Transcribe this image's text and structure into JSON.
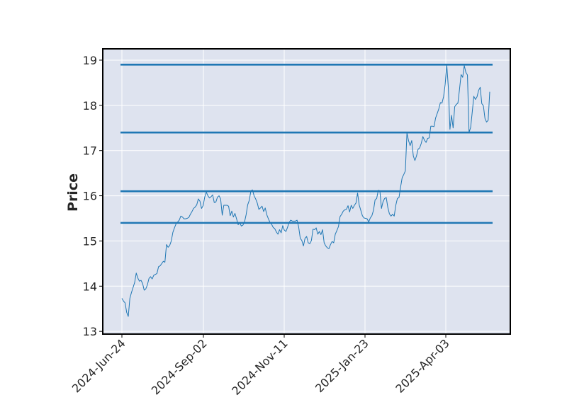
{
  "chart_data": {
    "type": "line",
    "title": "",
    "xlabel": "",
    "ylabel": "Price",
    "ylim": [
      12.94,
      19.25
    ],
    "grid": true,
    "x_tick_labels": [
      "2024-Jun-24",
      "2024-Sep-02",
      "2024-Nov-11",
      "2025-Jan-23",
      "2025-Apr-03"
    ],
    "y_ticks": [
      13,
      14,
      15,
      16,
      17,
      18,
      19
    ],
    "horizontal_levels": [
      15.4,
      16.1,
      17.4,
      18.9
    ],
    "series": [
      {
        "values": [
          13.73,
          13.67,
          13.63,
          13.42,
          13.33,
          13.73,
          13.86,
          13.97,
          14.08,
          14.29,
          14.18,
          14.11,
          14.13,
          14.06,
          13.91,
          13.94,
          14.03,
          14.17,
          14.21,
          14.16,
          14.24,
          14.26,
          14.28,
          14.43,
          14.45,
          14.5,
          14.55,
          14.53,
          14.92,
          14.86,
          14.9,
          15.0,
          15.19,
          15.29,
          15.38,
          15.42,
          15.46,
          15.55,
          15.53,
          15.49,
          15.49,
          15.5,
          15.52,
          15.59,
          15.65,
          15.72,
          15.75,
          15.8,
          15.93,
          15.88,
          15.72,
          15.78,
          15.97,
          16.08,
          16.0,
          15.95,
          15.98,
          16.02,
          15.85,
          15.86,
          15.97,
          16.0,
          15.93,
          15.57,
          15.79,
          15.79,
          15.79,
          15.77,
          15.56,
          15.66,
          15.53,
          15.61,
          15.49,
          15.36,
          15.4,
          15.33,
          15.35,
          15.42,
          15.58,
          15.8,
          15.9,
          16.11,
          16.13,
          16.0,
          15.93,
          15.84,
          15.7,
          15.73,
          15.77,
          15.65,
          15.73,
          15.58,
          15.49,
          15.41,
          15.37,
          15.3,
          15.27,
          15.2,
          15.15,
          15.25,
          15.18,
          15.34,
          15.24,
          15.21,
          15.3,
          15.41,
          15.46,
          15.44,
          15.44,
          15.44,
          15.46,
          15.31,
          15.06,
          15.01,
          14.89,
          15.06,
          15.1,
          14.96,
          14.94,
          15.01,
          15.26,
          15.25,
          15.29,
          15.15,
          15.21,
          15.14,
          15.25,
          14.96,
          14.89,
          14.85,
          14.83,
          14.92,
          14.99,
          14.96,
          15.15,
          15.23,
          15.32,
          15.54,
          15.59,
          15.66,
          15.69,
          15.7,
          15.78,
          15.64,
          15.79,
          15.72,
          15.79,
          15.84,
          16.06,
          15.8,
          15.68,
          15.56,
          15.51,
          15.5,
          15.49,
          15.42,
          15.51,
          15.56,
          15.68,
          15.91,
          15.94,
          16.12,
          16.11,
          15.72,
          15.87,
          15.94,
          15.96,
          15.74,
          15.6,
          15.55,
          15.59,
          15.55,
          15.79,
          15.94,
          15.96,
          16.19,
          16.4,
          16.47,
          16.55,
          17.39,
          17.22,
          17.11,
          17.22,
          16.88,
          16.78,
          16.88,
          17.03,
          17.06,
          17.16,
          17.31,
          17.23,
          17.18,
          17.27,
          17.28,
          17.54,
          17.54,
          17.53,
          17.72,
          17.82,
          17.92,
          18.06,
          18.05,
          18.19,
          18.46,
          18.9,
          18.4,
          17.47,
          17.78,
          17.5,
          17.97,
          18.02,
          18.05,
          18.35,
          18.68,
          18.62,
          18.88,
          18.73,
          18.67,
          17.4,
          17.51,
          17.85,
          18.2,
          18.13,
          18.19,
          18.33,
          18.4,
          18.04,
          17.99,
          17.71,
          17.63,
          17.67,
          18.3
        ]
      }
    ],
    "colors": {
      "plot_background": "#dee3ef",
      "grid": "#ffffff",
      "line": "#1f77b4",
      "levels": "#1f77b4",
      "frame": "#000000"
    }
  }
}
